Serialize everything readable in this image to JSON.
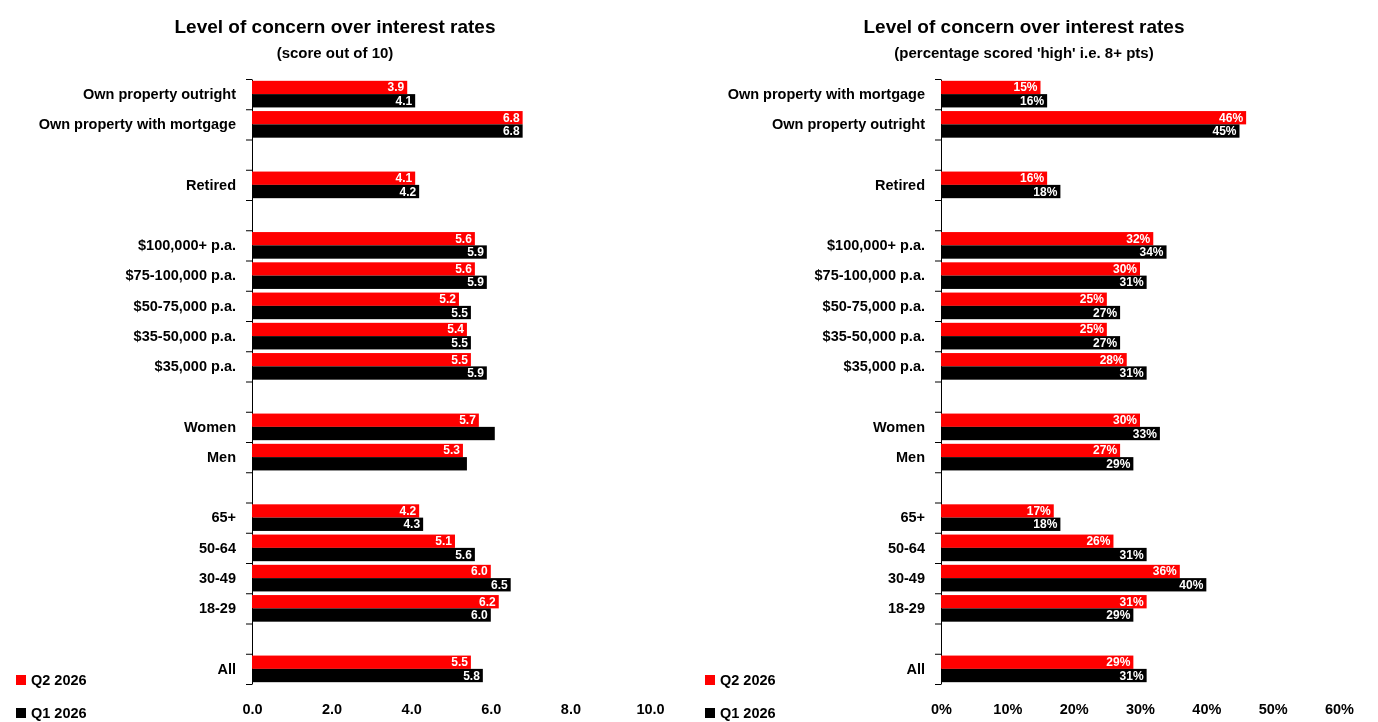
{
  "chart_data": [
    {
      "type": "bar",
      "orientation": "horizontal",
      "title": "Level of concern over interest rates",
      "subtitle": "(score out of 10)",
      "categories": [
        "Own property outright",
        "Own property with mortgage",
        null,
        "Retired",
        null,
        "$100,000+ p.a.",
        "$75-100,000 p.a.",
        "$50-75,000 p.a.",
        "$35-50,000 p.a.",
        "$35,000 p.a.",
        null,
        "Women",
        "Men",
        null,
        "65+",
        "50-64",
        "30-49",
        "18-29",
        null,
        "All"
      ],
      "series": [
        {
          "name": "Q2 2026",
          "color": "#ff0000",
          "values": [
            3.9,
            6.8,
            null,
            4.1,
            null,
            5.6,
            5.6,
            5.2,
            5.4,
            5.5,
            null,
            5.7,
            5.3,
            null,
            4.2,
            5.1,
            6.0,
            6.2,
            null,
            5.5
          ],
          "value_labels": [
            "3.9",
            "6.8",
            null,
            "4.1",
            null,
            "5.6",
            "5.6",
            "5.2",
            "5.4",
            "5.5",
            null,
            "5.7",
            "5.3",
            null,
            "4.2",
            "5.1",
            "6.0",
            "6.2",
            null,
            "5.5"
          ]
        },
        {
          "name": "Q1 2026",
          "color": "#000000",
          "values": [
            4.1,
            6.8,
            null,
            4.2,
            null,
            5.9,
            5.9,
            5.5,
            5.5,
            5.9,
            null,
            6.1,
            5.4,
            null,
            4.3,
            5.6,
            6.5,
            6.0,
            null,
            5.8
          ],
          "value_labels": [
            "4.1",
            "6.8",
            null,
            "4.2",
            null,
            "5.9",
            "5.9",
            "5.5",
            "5.5",
            "5.9",
            null,
            null,
            null,
            null,
            "4.3",
            "5.6",
            "6.5",
            "6.0",
            null,
            "5.8"
          ]
        }
      ],
      "xlim": [
        0,
        10
      ],
      "xticks": [
        {
          "value": 0,
          "label": "0.0"
        },
        {
          "value": 2,
          "label": "2.0"
        },
        {
          "value": 4,
          "label": "4.0"
        },
        {
          "value": 6,
          "label": "6.0"
        },
        {
          "value": 8,
          "label": "8.0"
        },
        {
          "value": 10,
          "label": "10.0"
        }
      ],
      "legend": "bottom left"
    },
    {
      "type": "bar",
      "orientation": "horizontal",
      "title": "Level of concern over interest rates",
      "subtitle": "(percentage scored 'high' i.e. 8+ pts)",
      "categories": [
        "Own property with mortgage",
        "Own property outright",
        null,
        "Retired",
        null,
        "$100,000+ p.a.",
        "$75-100,000 p.a.",
        "$50-75,000 p.a.",
        "$35-50,000 p.a.",
        "$35,000 p.a.",
        null,
        "Women",
        "Men",
        null,
        "65+",
        "50-64",
        "30-49",
        "18-29",
        null,
        "All"
      ],
      "series": [
        {
          "name": "Q2 2026",
          "color": "#ff0000",
          "values": [
            15,
            46,
            null,
            16,
            null,
            32,
            30,
            25,
            25,
            28,
            null,
            30,
            27,
            null,
            17,
            26,
            36,
            31,
            null,
            29
          ],
          "value_labels": [
            "15%",
            "46%",
            null,
            "16%",
            null,
            "32%",
            "30%",
            "25%",
            "25%",
            "28%",
            null,
            "30%",
            "27%",
            null,
            "17%",
            "26%",
            "36%",
            "31%",
            null,
            "29%"
          ]
        },
        {
          "name": "Q1 2026",
          "color": "#000000",
          "values": [
            16,
            45,
            null,
            18,
            null,
            34,
            31,
            27,
            27,
            31,
            null,
            33,
            29,
            null,
            18,
            31,
            40,
            29,
            null,
            31
          ],
          "value_labels": [
            "16%",
            "45%",
            null,
            "18%",
            null,
            "34%",
            "31%",
            "27%",
            "27%",
            "31%",
            null,
            "33%",
            "29%",
            null,
            "18%",
            "31%",
            "40%",
            "29%",
            null,
            "31%"
          ]
        }
      ],
      "xlim": [
        0,
        60
      ],
      "xticks": [
        {
          "value": 0,
          "label": "0%"
        },
        {
          "value": 10,
          "label": "10%"
        },
        {
          "value": 20,
          "label": "20%"
        },
        {
          "value": 30,
          "label": "30%"
        },
        {
          "value": 40,
          "label": "40%"
        },
        {
          "value": 50,
          "label": "50%"
        },
        {
          "value": 60,
          "label": "60%"
        }
      ],
      "legend": "bottom left"
    }
  ]
}
